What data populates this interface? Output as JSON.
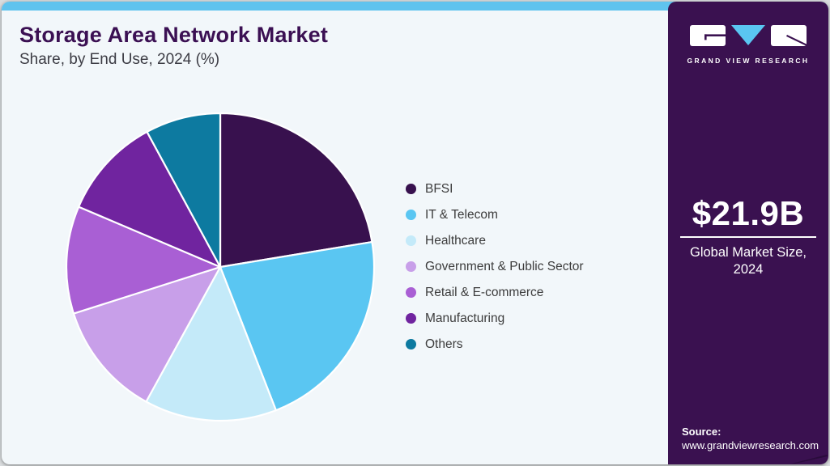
{
  "page": {
    "title": "Storage Area Network Market",
    "subtitle": "Share, by End Use, 2024 (%)"
  },
  "sidebar": {
    "logo_text": "GRAND VIEW RESEARCH",
    "market_size": "$21.9B",
    "market_label_line1": "Global Market Size,",
    "market_label_line2": "2024",
    "source_label": "Source:",
    "source_url": "www.grandviewresearch.com"
  },
  "colors": {
    "top_strip": "#5fc3ee",
    "card_bg": "#f2f7fa",
    "title_text": "#3b1053",
    "sidebar_bg": "#3a1150",
    "logo_triangle": "#5ac6f2",
    "slice_stroke": "#ffffff"
  },
  "chart_data": {
    "type": "pie",
    "title": "Storage Area Network Market Share, by End Use, 2024 (%)",
    "categories": [
      "BFSI",
      "IT & Telecom",
      "Healthcare",
      "Government & Public Sector",
      "Retail & E-commerce",
      "Manufacturing",
      "Others"
    ],
    "values": [
      22.4,
      21.7,
      13.9,
      12.1,
      11.3,
      10.7,
      7.9
    ],
    "colors": [
      "#38114e",
      "#5ac6f2",
      "#c4eaf9",
      "#c89fe9",
      "#a95fd4",
      "#70249f",
      "#0d7aa0"
    ],
    "legend_position": "right",
    "start_angle_deg": 0,
    "direction": "clockwise",
    "annotation_value": "$21.9B",
    "annotation_label": "Global Market Size, 2024"
  }
}
